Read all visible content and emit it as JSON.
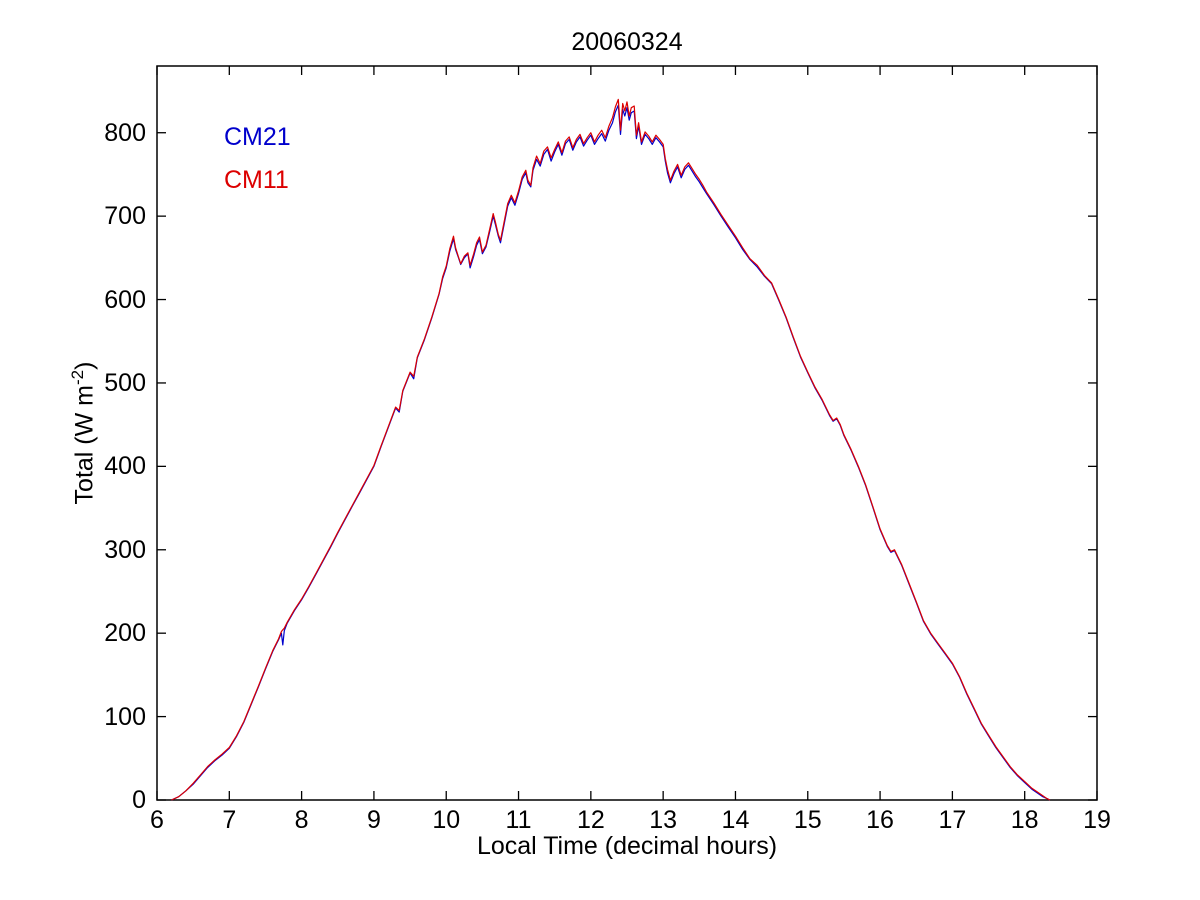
{
  "title": "20060324",
  "axes": {
    "xlabel": "Local Time (decimal hours)",
    "ylabel_prefix": "Total (W m",
    "ylabel_sup": "-2",
    "ylabel_suffix": ")",
    "xlim": [
      6,
      19
    ],
    "ylim": [
      0,
      880
    ],
    "xticks": [
      6,
      7,
      8,
      9,
      10,
      11,
      12,
      13,
      14,
      15,
      16,
      17,
      18,
      19
    ],
    "yticks": [
      0,
      100,
      200,
      300,
      400,
      500,
      600,
      700,
      800
    ],
    "axis_color": "#000000"
  },
  "legend": [
    {
      "label": "CM21",
      "color": "#0000CC"
    },
    {
      "label": "CM11",
      "color": "#DC0000"
    }
  ],
  "chart_data": {
    "type": "line",
    "title": "20060324",
    "xlabel": "Local Time (decimal hours)",
    "ylabel": "Total (W m^-2)",
    "xlim": [
      6,
      19
    ],
    "ylim": [
      0,
      880
    ],
    "grid": false,
    "legend_position": "upper-left-text",
    "series": [
      {
        "name": "CM21",
        "color": "#0000CC"
      },
      {
        "name": "CM11",
        "color": "#DC0000"
      }
    ],
    "x_units": "decimal hours",
    "y_units": "W m^-2",
    "points": [
      [
        6.2,
        0,
        0
      ],
      [
        6.3,
        4,
        4
      ],
      [
        6.4,
        11,
        11
      ],
      [
        6.5,
        19,
        20
      ],
      [
        6.6,
        29,
        30
      ],
      [
        6.7,
        39,
        40
      ],
      [
        6.8,
        47,
        48
      ],
      [
        6.9,
        54,
        55
      ],
      [
        7.0,
        62,
        63
      ],
      [
        7.1,
        76,
        77
      ],
      [
        7.2,
        93,
        94
      ],
      [
        7.3,
        114,
        115
      ],
      [
        7.4,
        135,
        136
      ],
      [
        7.5,
        157,
        158
      ],
      [
        7.6,
        178,
        179
      ],
      [
        7.68,
        192,
        193
      ],
      [
        7.72,
        200,
        202
      ],
      [
        7.74,
        186,
        204
      ],
      [
        7.76,
        203,
        206
      ],
      [
        7.8,
        212,
        213
      ],
      [
        7.9,
        227,
        228
      ],
      [
        8.0,
        240,
        241
      ],
      [
        8.1,
        255,
        256
      ],
      [
        8.2,
        271,
        272
      ],
      [
        8.3,
        287,
        288
      ],
      [
        8.4,
        303,
        304
      ],
      [
        8.5,
        320,
        321
      ],
      [
        8.6,
        336,
        337
      ],
      [
        8.7,
        352,
        353
      ],
      [
        8.8,
        368,
        369
      ],
      [
        8.9,
        384,
        385
      ],
      [
        9.0,
        400,
        401
      ],
      [
        9.1,
        424,
        425
      ],
      [
        9.2,
        447,
        448
      ],
      [
        9.3,
        470,
        471
      ],
      [
        9.35,
        465,
        467
      ],
      [
        9.4,
        490,
        491
      ],
      [
        9.5,
        512,
        513
      ],
      [
        9.55,
        505,
        508
      ],
      [
        9.6,
        530,
        531
      ],
      [
        9.7,
        552,
        553
      ],
      [
        9.8,
        578,
        579
      ],
      [
        9.9,
        606,
        607
      ],
      [
        9.95,
        625,
        627
      ],
      [
        10.0,
        638,
        640
      ],
      [
        10.05,
        658,
        661
      ],
      [
        10.1,
        673,
        676
      ],
      [
        10.13,
        660,
        662
      ],
      [
        10.17,
        650,
        651
      ],
      [
        10.2,
        642,
        643
      ],
      [
        10.25,
        650,
        652
      ],
      [
        10.3,
        655,
        656
      ],
      [
        10.33,
        638,
        641
      ],
      [
        10.38,
        652,
        655
      ],
      [
        10.42,
        665,
        668
      ],
      [
        10.46,
        672,
        675
      ],
      [
        10.5,
        655,
        657
      ],
      [
        10.55,
        663,
        665
      ],
      [
        10.6,
        681,
        684
      ],
      [
        10.65,
        700,
        703
      ],
      [
        10.68,
        690,
        693
      ],
      [
        10.72,
        676,
        678
      ],
      [
        10.75,
        668,
        671
      ],
      [
        10.8,
        690,
        693
      ],
      [
        10.85,
        712,
        715
      ],
      [
        10.9,
        722,
        725
      ],
      [
        10.95,
        713,
        716
      ],
      [
        11.0,
        727,
        730
      ],
      [
        11.05,
        744,
        747
      ],
      [
        11.1,
        752,
        755
      ],
      [
        11.13,
        740,
        743
      ],
      [
        11.17,
        735,
        737
      ],
      [
        11.2,
        755,
        758
      ],
      [
        11.25,
        768,
        772
      ],
      [
        11.3,
        760,
        763
      ],
      [
        11.35,
        774,
        778
      ],
      [
        11.4,
        780,
        783
      ],
      [
        11.45,
        766,
        770
      ],
      [
        11.5,
        777,
        780
      ],
      [
        11.55,
        786,
        789
      ],
      [
        11.6,
        773,
        776
      ],
      [
        11.65,
        787,
        790
      ],
      [
        11.7,
        792,
        795
      ],
      [
        11.75,
        779,
        782
      ],
      [
        11.8,
        789,
        792
      ],
      [
        11.85,
        795,
        798
      ],
      [
        11.9,
        784,
        787
      ],
      [
        11.95,
        791,
        794
      ],
      [
        12.0,
        797,
        800
      ],
      [
        12.05,
        786,
        789
      ],
      [
        12.1,
        793,
        797
      ],
      [
        12.15,
        799,
        803
      ],
      [
        12.2,
        790,
        794
      ],
      [
        12.25,
        803,
        808
      ],
      [
        12.3,
        812,
        818
      ],
      [
        12.34,
        825,
        831
      ],
      [
        12.38,
        833,
        840
      ],
      [
        12.41,
        798,
        803
      ],
      [
        12.44,
        828,
        835
      ],
      [
        12.47,
        820,
        826
      ],
      [
        12.5,
        830,
        837
      ],
      [
        12.53,
        815,
        820
      ],
      [
        12.56,
        824,
        830
      ],
      [
        12.6,
        826,
        832
      ],
      [
        12.63,
        793,
        797
      ],
      [
        12.66,
        808,
        812
      ],
      [
        12.7,
        786,
        789
      ],
      [
        12.75,
        798,
        801
      ],
      [
        12.8,
        793,
        796
      ],
      [
        12.85,
        786,
        789
      ],
      [
        12.9,
        794,
        797
      ],
      [
        12.95,
        789,
        792
      ],
      [
        13.0,
        783,
        786
      ],
      [
        13.03,
        766,
        769
      ],
      [
        13.06,
        752,
        756
      ],
      [
        13.1,
        740,
        743
      ],
      [
        13.15,
        751,
        754
      ],
      [
        13.2,
        759,
        762
      ],
      [
        13.25,
        746,
        749
      ],
      [
        13.3,
        756,
        759
      ],
      [
        13.35,
        761,
        764
      ],
      [
        13.4,
        754,
        757
      ],
      [
        13.45,
        747,
        750
      ],
      [
        13.5,
        741,
        744
      ],
      [
        13.55,
        734,
        737
      ],
      [
        13.6,
        727,
        729
      ],
      [
        13.7,
        714,
        716
      ],
      [
        13.8,
        700,
        702
      ],
      [
        13.9,
        687,
        689
      ],
      [
        14.0,
        674,
        676
      ],
      [
        14.1,
        660,
        662
      ],
      [
        14.2,
        648,
        649
      ],
      [
        14.3,
        639,
        641
      ],
      [
        14.4,
        628,
        629
      ],
      [
        14.5,
        619,
        620
      ],
      [
        14.6,
        599,
        600
      ],
      [
        14.7,
        578,
        579
      ],
      [
        14.8,
        554,
        555
      ],
      [
        14.9,
        531,
        532
      ],
      [
        15.0,
        512,
        513
      ],
      [
        15.1,
        494,
        495
      ],
      [
        15.2,
        479,
        480
      ],
      [
        15.3,
        461,
        462
      ],
      [
        15.35,
        454,
        455
      ],
      [
        15.4,
        457,
        458
      ],
      [
        15.45,
        449,
        450
      ],
      [
        15.5,
        437,
        438
      ],
      [
        15.6,
        419,
        420
      ],
      [
        15.7,
        399,
        400
      ],
      [
        15.8,
        377,
        378
      ],
      [
        15.9,
        351,
        352
      ],
      [
        16.0,
        324,
        325
      ],
      [
        16.1,
        304,
        305
      ],
      [
        16.15,
        297,
        298
      ],
      [
        16.2,
        299,
        300
      ],
      [
        16.3,
        281,
        282
      ],
      [
        16.4,
        259,
        260
      ],
      [
        16.5,
        237,
        238
      ],
      [
        16.6,
        214,
        215
      ],
      [
        16.7,
        199,
        200
      ],
      [
        16.8,
        187,
        188
      ],
      [
        16.9,
        175,
        176
      ],
      [
        17.0,
        163,
        164
      ],
      [
        17.1,
        147,
        148
      ],
      [
        17.2,
        127,
        128
      ],
      [
        17.3,
        109,
        110
      ],
      [
        17.4,
        91,
        92
      ],
      [
        17.5,
        77,
        78
      ],
      [
        17.6,
        63,
        64
      ],
      [
        17.7,
        51,
        52
      ],
      [
        17.8,
        39,
        40
      ],
      [
        17.9,
        29,
        30
      ],
      [
        18.0,
        21,
        22
      ],
      [
        18.1,
        13,
        14
      ],
      [
        18.2,
        7,
        8
      ],
      [
        18.25,
        4,
        5
      ],
      [
        18.3,
        2,
        2
      ],
      [
        18.35,
        0,
        0
      ]
    ]
  },
  "plot_geometry_note": "values in W m-2"
}
